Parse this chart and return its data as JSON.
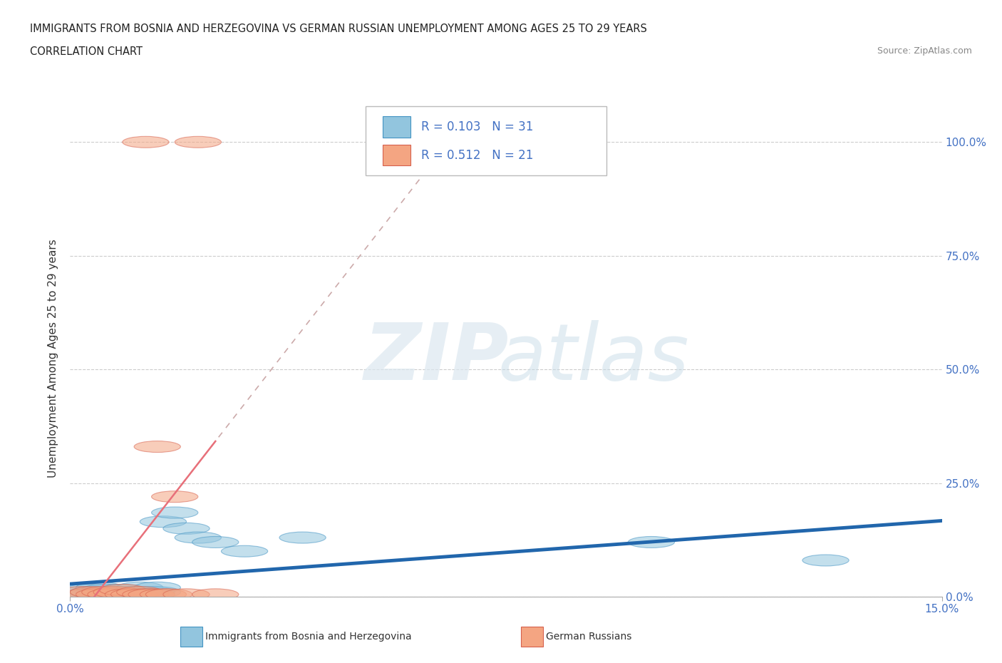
{
  "title_line1": "IMMIGRANTS FROM BOSNIA AND HERZEGOVINA VS GERMAN RUSSIAN UNEMPLOYMENT AMONG AGES 25 TO 29 YEARS",
  "title_line2": "CORRELATION CHART",
  "source_text": "Source: ZipAtlas.com",
  "ylabel": "Unemployment Among Ages 25 to 29 years",
  "xmin": 0.0,
  "xmax": 0.15,
  "ymin": 0.0,
  "ymax": 1.05,
  "ytick_labels": [
    "0.0%",
    "25.0%",
    "50.0%",
    "75.0%",
    "100.0%"
  ],
  "ytick_values": [
    0.0,
    0.25,
    0.5,
    0.75,
    1.0
  ],
  "xtick_labels": [
    "0.0%",
    "15.0%"
  ],
  "xtick_values": [
    0.0,
    0.15
  ],
  "blue_color": "#92c5de",
  "blue_edge_color": "#4393c3",
  "pink_color": "#f4a582",
  "pink_edge_color": "#d6604d",
  "trendline_blue_color": "#2166ac",
  "trendline_pink_color": "#e8707a",
  "blue_scatter_x": [
    0.002,
    0.003,
    0.004,
    0.004,
    0.005,
    0.005,
    0.006,
    0.006,
    0.007,
    0.007,
    0.008,
    0.009,
    0.009,
    0.01,
    0.01,
    0.011,
    0.012,
    0.012,
    0.013,
    0.014,
    0.015,
    0.015,
    0.016,
    0.018,
    0.02,
    0.022,
    0.025,
    0.03,
    0.04,
    0.1,
    0.13
  ],
  "blue_scatter_y": [
    0.01,
    0.015,
    0.005,
    0.01,
    0.01,
    0.02,
    0.005,
    0.015,
    0.005,
    0.01,
    0.01,
    0.005,
    0.015,
    0.005,
    0.01,
    0.01,
    0.01,
    0.02,
    0.005,
    0.01,
    0.01,
    0.02,
    0.165,
    0.185,
    0.15,
    0.13,
    0.12,
    0.1,
    0.13,
    0.12,
    0.08
  ],
  "pink_scatter_x": [
    0.002,
    0.003,
    0.004,
    0.005,
    0.006,
    0.007,
    0.008,
    0.009,
    0.01,
    0.011,
    0.012,
    0.013,
    0.013,
    0.014,
    0.015,
    0.016,
    0.017,
    0.018,
    0.02,
    0.022,
    0.025
  ],
  "pink_scatter_y": [
    0.01,
    0.005,
    0.01,
    0.005,
    0.01,
    0.005,
    0.01,
    0.015,
    0.005,
    0.005,
    0.01,
    0.005,
    1.0,
    0.005,
    0.33,
    0.005,
    0.005,
    0.22,
    0.005,
    1.0,
    0.005
  ],
  "legend_text1": "R = 0.103   N = 31",
  "legend_text2": "R = 0.512   N = 21"
}
